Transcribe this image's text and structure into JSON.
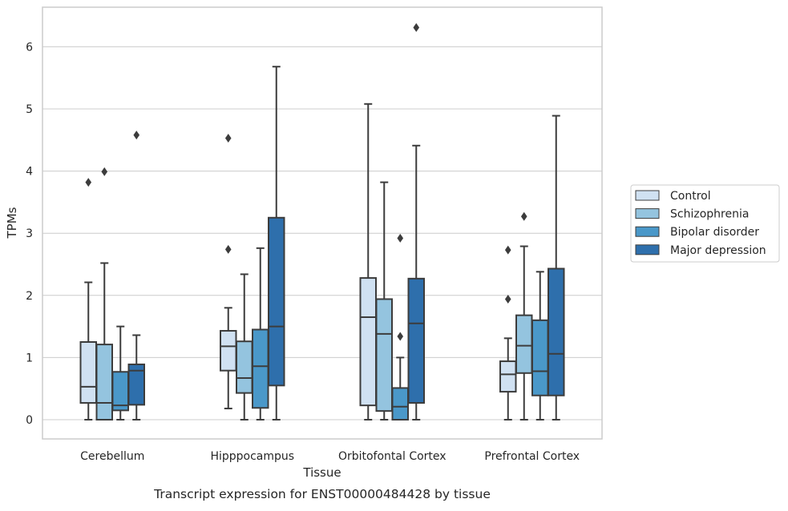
{
  "chart_data": {
    "type": "box",
    "xlabel": "Tissue",
    "ylabel": "TPMs",
    "caption": "Transcript expression for ENST00000484428 by tissue",
    "categories": [
      "Cerebellum",
      "Hipppocampus",
      "Orbitofontal Cortex",
      "Prefrontal Cortex"
    ],
    "y_ticks": [
      "0",
      "1",
      "2",
      "3",
      "4",
      "5",
      "6"
    ],
    "ylim": [
      -0.3,
      6.6
    ],
    "grid": true,
    "legend_position": "center-right",
    "series": [
      {
        "name": "Control",
        "color": "#d0e1f2",
        "boxes": [
          {
            "whisker_low": 0.0,
            "q1": 0.27,
            "median": 0.53,
            "q3": 1.25,
            "whisker_high": 2.21,
            "outliers": [
              3.82
            ]
          },
          {
            "whisker_low": 0.18,
            "q1": 0.79,
            "median": 1.18,
            "q3": 1.43,
            "whisker_high": 1.8,
            "outliers": [
              2.74,
              4.53
            ]
          },
          {
            "whisker_low": 0.0,
            "q1": 0.23,
            "median": 1.65,
            "q3": 2.28,
            "whisker_high": 5.08,
            "outliers": []
          },
          {
            "whisker_low": 0.0,
            "q1": 0.45,
            "median": 0.73,
            "q3": 0.94,
            "whisker_high": 1.31,
            "outliers": [
              1.94,
              2.73
            ]
          }
        ]
      },
      {
        "name": "Schizophrenia",
        "color": "#94c4df",
        "boxes": [
          {
            "whisker_low": 0.0,
            "q1": 0.0,
            "median": 0.27,
            "q3": 1.21,
            "whisker_high": 2.52,
            "outliers": [
              3.99
            ]
          },
          {
            "whisker_low": 0.0,
            "q1": 0.43,
            "median": 0.67,
            "q3": 1.26,
            "whisker_high": 2.34,
            "outliers": []
          },
          {
            "whisker_low": 0.0,
            "q1": 0.14,
            "median": 1.38,
            "q3": 1.94,
            "whisker_high": 3.82,
            "outliers": []
          },
          {
            "whisker_low": 0.0,
            "q1": 0.75,
            "median": 1.19,
            "q3": 1.68,
            "whisker_high": 2.79,
            "outliers": [
              3.27
            ]
          }
        ]
      },
      {
        "name": "Bipolar disorder",
        "color": "#4a98c9",
        "boxes": [
          {
            "whisker_low": 0.0,
            "q1": 0.15,
            "median": 0.23,
            "q3": 0.77,
            "whisker_high": 1.5,
            "outliers": []
          },
          {
            "whisker_low": 0.0,
            "q1": 0.19,
            "median": 0.86,
            "q3": 1.45,
            "whisker_high": 2.76,
            "outliers": []
          },
          {
            "whisker_low": 0.0,
            "q1": 0.0,
            "median": 0.21,
            "q3": 0.51,
            "whisker_high": 1.0,
            "outliers": [
              1.34,
              2.92
            ]
          },
          {
            "whisker_low": 0.0,
            "q1": 0.39,
            "median": 0.78,
            "q3": 1.6,
            "whisker_high": 2.38,
            "outliers": []
          }
        ]
      },
      {
        "name": "Major depression",
        "color": "#2e6fac",
        "boxes": [
          {
            "whisker_low": 0.0,
            "q1": 0.24,
            "median": 0.79,
            "q3": 0.89,
            "whisker_high": 1.36,
            "outliers": [
              4.58
            ]
          },
          {
            "whisker_low": 0.0,
            "q1": 0.55,
            "median": 1.5,
            "q3": 3.25,
            "whisker_high": 5.68,
            "outliers": []
          },
          {
            "whisker_low": 0.0,
            "q1": 0.27,
            "median": 1.55,
            "q3": 2.27,
            "whisker_high": 4.41,
            "outliers": [
              6.31
            ]
          },
          {
            "whisker_low": 0.0,
            "q1": 0.39,
            "median": 1.06,
            "q3": 2.43,
            "whisker_high": 4.89,
            "outliers": []
          }
        ]
      }
    ]
  }
}
